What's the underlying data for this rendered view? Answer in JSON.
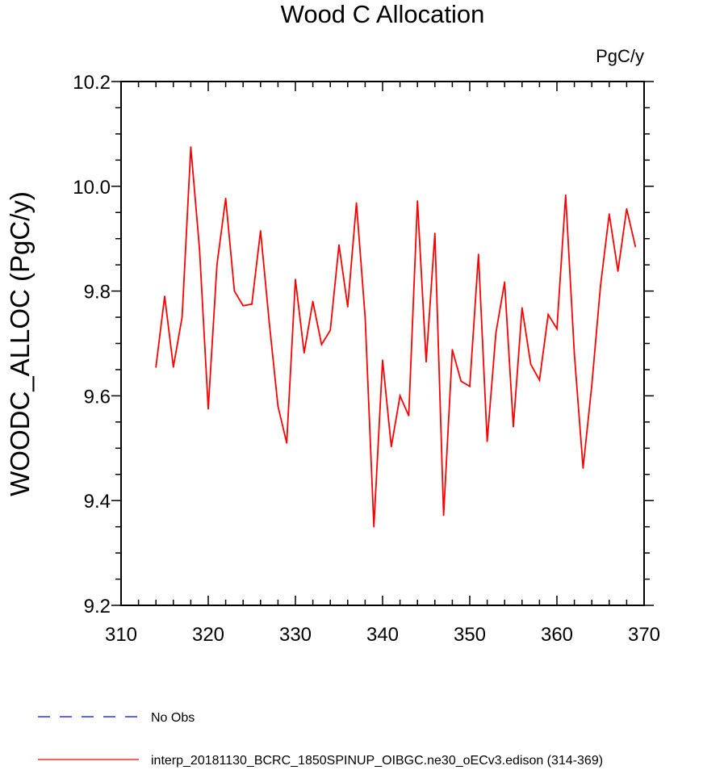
{
  "chart_data": {
    "type": "line",
    "title": "Wood C Allocation",
    "units": "PgC/y",
    "xlabel": "",
    "ylabel": "WOODC_ALLOC  (PgC/y)",
    "xlim": [
      310,
      370
    ],
    "ylim": [
      9.2,
      10.2
    ],
    "x_ticks": [
      310,
      320,
      330,
      340,
      350,
      360,
      370
    ],
    "x_tick_labels": [
      "310",
      "320",
      "330",
      "340",
      "350",
      "360",
      "370"
    ],
    "y_ticks": [
      9.2,
      9.4,
      9.6,
      9.8,
      10.0,
      10.2
    ],
    "y_tick_labels": [
      "9.2",
      "9.4",
      "9.6",
      "9.8",
      "10.0",
      "10.2"
    ],
    "grid": false,
    "legend_position": "bottom",
    "series": [
      {
        "name": "interp_20181130_BCRC_1850SPINUP_OIBGC.ne30_oECv3.edison (314-369)",
        "color": "#ff0000",
        "dash": "solid",
        "x": [
          314,
          315,
          316,
          317,
          318,
          319,
          320,
          321,
          322,
          323,
          324,
          325,
          326,
          327,
          328,
          329,
          330,
          331,
          332,
          333,
          334,
          335,
          336,
          337,
          338,
          339,
          340,
          341,
          342,
          343,
          344,
          345,
          346,
          347,
          348,
          349,
          350,
          351,
          352,
          353,
          354,
          355,
          356,
          357,
          358,
          359,
          360,
          361,
          362,
          363,
          364,
          365,
          366,
          367,
          368,
          369
        ],
        "y": [
          9.655,
          9.79,
          9.655,
          9.75,
          10.075,
          9.88,
          9.575,
          9.85,
          9.977,
          9.8,
          9.772,
          9.775,
          9.915,
          9.74,
          9.58,
          9.51,
          9.822,
          9.682,
          9.78,
          9.698,
          9.725,
          9.888,
          9.77,
          9.968,
          9.75,
          9.35,
          9.668,
          9.503,
          9.6,
          9.562,
          9.972,
          9.665,
          9.91,
          9.372,
          9.688,
          9.628,
          9.618,
          9.87,
          9.513,
          9.72,
          9.817,
          9.541,
          9.768,
          9.66,
          9.63,
          9.755,
          9.728,
          9.983,
          9.68,
          9.462,
          9.62,
          9.81,
          9.947,
          9.838,
          9.957,
          9.885
        ]
      }
    ],
    "legend": [
      {
        "label": "No Obs",
        "color": "#0000ff",
        "dash": "dashed"
      },
      {
        "label": "interp_20181130_BCRC_1850SPINUP_OIBGC.ne30_oECv3.edison (314-369)",
        "color": "#ff0000",
        "dash": "solid"
      }
    ]
  }
}
